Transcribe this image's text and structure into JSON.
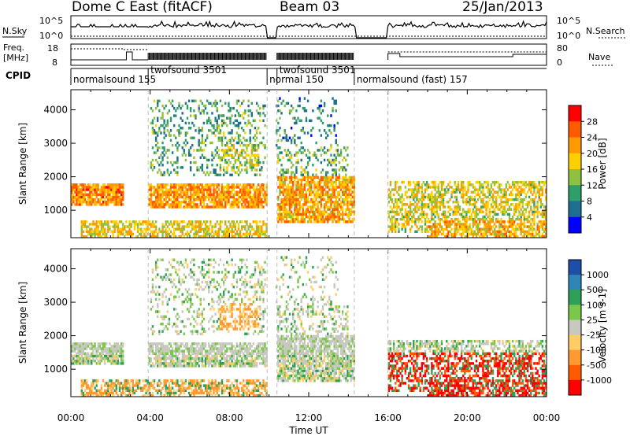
{
  "header": {
    "title": "Dome C East (fitACF)",
    "beam": "Beam 03",
    "date": "25/Jan/2013"
  },
  "strips": {
    "nsky_label": "N.Sky",
    "nsky_ticks": [
      "10^5",
      "10^0"
    ],
    "nsearch_label": "N.Search",
    "freq_label_1": "Freq.",
    "freq_label_2": "[MHz]",
    "freq_ticks": [
      "18",
      "8"
    ],
    "nave_label": "Nave",
    "nave_ticks": [
      "80",
      "0"
    ],
    "cpid_label": "CPID"
  },
  "cpid_modes": [
    {
      "label": "normalsound 155",
      "start": 0.0
    },
    {
      "label": "twofsound 3501",
      "start": 3.9
    },
    {
      "label": "normal 150",
      "start": 9.9
    },
    {
      "label": "twofsound 3501",
      "start": 10.4
    },
    {
      "label": "normalsound (fast) 157",
      "start": 14.3
    }
  ],
  "chart_data": [
    {
      "type": "heatmap",
      "title": "Power",
      "xlabel": "Time UT",
      "ylabel": "Slant Range [km]",
      "xlim": [
        0,
        24
      ],
      "ylim": [
        180,
        4600
      ],
      "x_ticks": [
        "00:00",
        "04:00",
        "08:00",
        "12:00",
        "16:00",
        "20:00",
        "00:00"
      ],
      "y_ticks": [
        1000,
        2000,
        3000,
        4000
      ],
      "colorbar": {
        "label": "Power [dB]",
        "ticks": [
          "28",
          "24",
          "20",
          "16",
          "12",
          "8",
          "4"
        ],
        "colors": [
          "#ff0000",
          "#ff5a00",
          "#ff9a00",
          "#ffd000",
          "#90c040",
          "#2e9e6a",
          "#1e6f8f",
          "#0000ff"
        ]
      },
      "data_gaps_hours": [
        [
          9.9,
          10.35
        ],
        [
          14.4,
          16.0
        ]
      ],
      "dominant_bands": [
        {
          "time": [
            0,
            2.6
          ],
          "range": [
            1150,
            1800
          ],
          "level": "high"
        },
        {
          "time": [
            3.9,
            9.9
          ],
          "range": [
            1100,
            1800
          ],
          "level": "high"
        },
        {
          "time": [
            10.4,
            14.3
          ],
          "range": [
            600,
            2000
          ],
          "level": "high"
        },
        {
          "time": [
            16.0,
            24
          ],
          "range": [
            300,
            1900
          ],
          "level": "mixed"
        }
      ]
    },
    {
      "type": "heatmap",
      "title": "Velocity",
      "xlabel": "Time UT",
      "ylabel": "Slant Range [km]",
      "xlim": [
        0,
        24
      ],
      "ylim": [
        180,
        4600
      ],
      "x_ticks": [
        "00:00",
        "04:00",
        "08:00",
        "12:00",
        "16:00",
        "20:00",
        "00:00"
      ],
      "y_ticks": [
        1000,
        2000,
        3000,
        4000
      ],
      "colorbar": {
        "label": "Velocity [m s-1]",
        "ticks": [
          "1000",
          "500",
          "100",
          "25",
          "-25",
          "-100",
          "-500",
          "-1000"
        ],
        "colors": [
          "#1f4ea8",
          "#2e86b8",
          "#2ea058",
          "#7ac84a",
          "#c8c8c0",
          "#ffcc66",
          "#ff9a30",
          "#ff5a00",
          "#ff0000"
        ]
      },
      "data_gaps_hours": [
        [
          9.9,
          10.35
        ],
        [
          14.4,
          16.0
        ]
      ]
    }
  ]
}
